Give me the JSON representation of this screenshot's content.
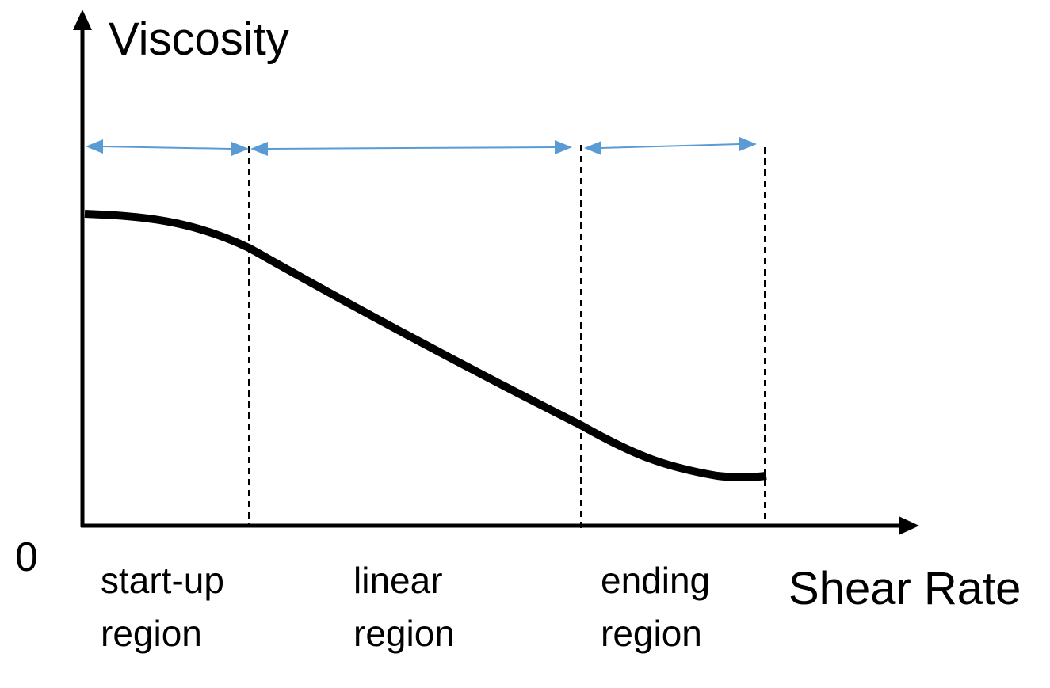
{
  "y_axis_label": "Viscosity",
  "x_axis_label": "Shear Rate",
  "origin_label": "0",
  "regions": [
    {
      "line1": "start-up",
      "line2": "region"
    },
    {
      "line1": "linear",
      "line2": "region"
    },
    {
      "line1": "ending",
      "line2": "region"
    }
  ],
  "colors": {
    "axis": "#000000",
    "curve": "#000000",
    "span_arrows": "#5b9bd5",
    "dividers": "#000000"
  }
}
